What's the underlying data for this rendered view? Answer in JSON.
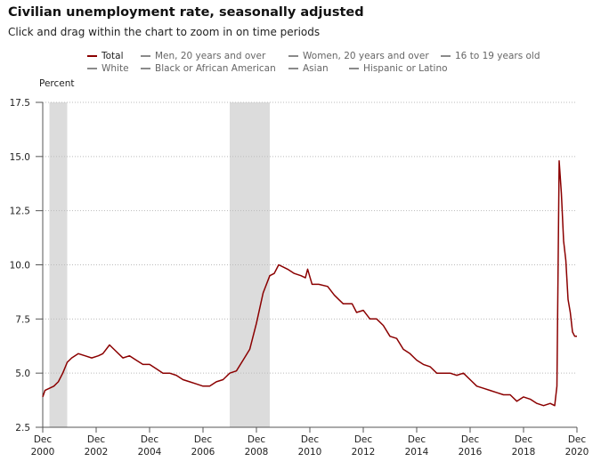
{
  "header": {
    "title": "Civilian unemployment rate, seasonally adjusted",
    "subtitle": "Click and drag within the chart to zoom in on time periods"
  },
  "legend": [
    {
      "label": "Total",
      "active": true
    },
    {
      "label": "Men, 20 years and over",
      "active": false
    },
    {
      "label": "Women, 20 years and over",
      "active": false
    },
    {
      "label": "16 to 19 years old",
      "active": false
    },
    {
      "label": "White",
      "active": false
    },
    {
      "label": "Black or African American",
      "active": false
    },
    {
      "label": "Asian",
      "active": false
    },
    {
      "label": "Hispanic or Latino",
      "active": false
    }
  ],
  "colors": {
    "series": "#8b0000",
    "inactive_legend": "#8a8a8a",
    "recession_band": "#dcdcdc",
    "grid": "#bbbbbb"
  },
  "chart_data": {
    "type": "line",
    "title": "Civilian unemployment rate, seasonally adjusted",
    "ylabel": "Percent",
    "xlabel": "",
    "ylim": [
      2.5,
      17.5
    ],
    "xlim": [
      "2000-12",
      "2020-12"
    ],
    "yticks": [
      "2.5",
      "5.0",
      "7.5",
      "10.0",
      "12.5",
      "15.0",
      "17.5"
    ],
    "xticks": [
      {
        "month": "Dec",
        "year": "2000"
      },
      {
        "month": "Dec",
        "year": "2002"
      },
      {
        "month": "Dec",
        "year": "2004"
      },
      {
        "month": "Dec",
        "year": "2006"
      },
      {
        "month": "Dec",
        "year": "2008"
      },
      {
        "month": "Dec",
        "year": "2010"
      },
      {
        "month": "Dec",
        "year": "2012"
      },
      {
        "month": "Dec",
        "year": "2014"
      },
      {
        "month": "Dec",
        "year": "2016"
      },
      {
        "month": "Dec",
        "year": "2018"
      },
      {
        "month": "Dec",
        "year": "2020"
      }
    ],
    "grid": true,
    "recessions": [
      {
        "start": "2001-03",
        "end": "2001-11"
      },
      {
        "start": "2007-12",
        "end": "2009-06"
      }
    ],
    "series": [
      {
        "name": "Total",
        "points": [
          [
            "2000-12",
            3.9
          ],
          [
            "2001-01",
            4.2
          ],
          [
            "2001-03",
            4.3
          ],
          [
            "2001-05",
            4.4
          ],
          [
            "2001-07",
            4.6
          ],
          [
            "2001-09",
            5.0
          ],
          [
            "2001-11",
            5.5
          ],
          [
            "2002-01",
            5.7
          ],
          [
            "2002-04",
            5.9
          ],
          [
            "2002-07",
            5.8
          ],
          [
            "2002-10",
            5.7
          ],
          [
            "2003-01",
            5.8
          ],
          [
            "2003-03",
            5.9
          ],
          [
            "2003-06",
            6.3
          ],
          [
            "2003-08",
            6.1
          ],
          [
            "2003-12",
            5.7
          ],
          [
            "2004-03",
            5.8
          ],
          [
            "2004-06",
            5.6
          ],
          [
            "2004-09",
            5.4
          ],
          [
            "2004-12",
            5.4
          ],
          [
            "2005-03",
            5.2
          ],
          [
            "2005-06",
            5.0
          ],
          [
            "2005-09",
            5.0
          ],
          [
            "2005-12",
            4.9
          ],
          [
            "2006-03",
            4.7
          ],
          [
            "2006-06",
            4.6
          ],
          [
            "2006-09",
            4.5
          ],
          [
            "2006-12",
            4.4
          ],
          [
            "2007-03",
            4.4
          ],
          [
            "2007-06",
            4.6
          ],
          [
            "2007-09",
            4.7
          ],
          [
            "2007-12",
            5.0
          ],
          [
            "2008-03",
            5.1
          ],
          [
            "2008-06",
            5.6
          ],
          [
            "2008-09",
            6.1
          ],
          [
            "2008-12",
            7.3
          ],
          [
            "2009-03",
            8.7
          ],
          [
            "2009-06",
            9.5
          ],
          [
            "2009-08",
            9.6
          ],
          [
            "2009-10",
            10.0
          ],
          [
            "2009-12",
            9.9
          ],
          [
            "2010-02",
            9.8
          ],
          [
            "2010-05",
            9.6
          ],
          [
            "2010-08",
            9.5
          ],
          [
            "2010-10",
            9.4
          ],
          [
            "2010-11",
            9.8
          ],
          [
            "2011-01",
            9.1
          ],
          [
            "2011-04",
            9.1
          ],
          [
            "2011-08",
            9.0
          ],
          [
            "2011-11",
            8.6
          ],
          [
            "2012-03",
            8.2
          ],
          [
            "2012-07",
            8.2
          ],
          [
            "2012-09",
            7.8
          ],
          [
            "2012-12",
            7.9
          ],
          [
            "2013-03",
            7.5
          ],
          [
            "2013-06",
            7.5
          ],
          [
            "2013-09",
            7.2
          ],
          [
            "2013-12",
            6.7
          ],
          [
            "2014-03",
            6.6
          ],
          [
            "2014-06",
            6.1
          ],
          [
            "2014-09",
            5.9
          ],
          [
            "2014-12",
            5.6
          ],
          [
            "2015-03",
            5.4
          ],
          [
            "2015-06",
            5.3
          ],
          [
            "2015-09",
            5.0
          ],
          [
            "2015-12",
            5.0
          ],
          [
            "2016-03",
            5.0
          ],
          [
            "2016-06",
            4.9
          ],
          [
            "2016-09",
            5.0
          ],
          [
            "2016-12",
            4.7
          ],
          [
            "2017-03",
            4.4
          ],
          [
            "2017-06",
            4.3
          ],
          [
            "2017-09",
            4.2
          ],
          [
            "2017-12",
            4.1
          ],
          [
            "2018-03",
            4.0
          ],
          [
            "2018-06",
            4.0
          ],
          [
            "2018-09",
            3.7
          ],
          [
            "2018-12",
            3.9
          ],
          [
            "2019-03",
            3.8
          ],
          [
            "2019-06",
            3.6
          ],
          [
            "2019-09",
            3.5
          ],
          [
            "2019-12",
            3.6
          ],
          [
            "2020-02",
            3.5
          ],
          [
            "2020-03",
            4.4
          ],
          [
            "2020-04",
            14.8
          ],
          [
            "2020-05",
            13.3
          ],
          [
            "2020-06",
            11.1
          ],
          [
            "2020-07",
            10.2
          ],
          [
            "2020-08",
            8.4
          ],
          [
            "2020-09",
            7.8
          ],
          [
            "2020-10",
            6.9
          ],
          [
            "2020-11",
            6.7
          ],
          [
            "2020-12",
            6.7
          ]
        ]
      }
    ]
  }
}
